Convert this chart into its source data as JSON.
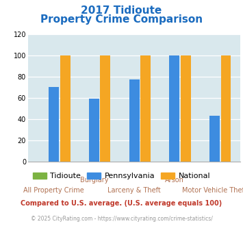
{
  "title_line1": "2017 Tidioute",
  "title_line2": "Property Crime Comparison",
  "title_color": "#1a6bbf",
  "categories": [
    "All Property Crime",
    "Burglary",
    "Larceny & Theft",
    "Arson",
    "Motor Vehicle Theft"
  ],
  "tidioute": [
    0,
    0,
    0,
    0,
    0
  ],
  "pennsylvania": [
    70,
    59,
    77,
    100,
    43
  ],
  "national": [
    100,
    100,
    100,
    100,
    100
  ],
  "tidioute_color": "#7cb342",
  "pennsylvania_color": "#3d8ce0",
  "national_color": "#f5a623",
  "ylim": [
    0,
    120
  ],
  "yticks": [
    0,
    20,
    40,
    60,
    80,
    100,
    120
  ],
  "bar_width": 0.28,
  "bg_color": "#d9e8ed",
  "legend_label_tidioute": "Tidioute",
  "legend_label_pennsylvania": "Pennsylvania",
  "legend_label_national": "National",
  "footnote1": "Compared to U.S. average. (U.S. average equals 100)",
  "footnote2": "© 2025 CityRating.com - https://www.cityrating.com/crime-statistics/",
  "footnote1_color": "#c0392b",
  "footnote2_color": "#999999",
  "label_color": "#b07050"
}
